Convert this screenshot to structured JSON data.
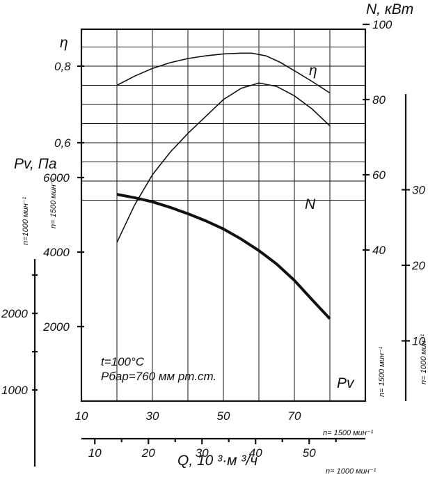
{
  "chart_data": {
    "type": "line",
    "x_unit_label": "Q, 10 ³·м ³/ч",
    "x_axis_1500": {
      "ticks": [
        10,
        30,
        50,
        70
      ],
      "speed_label": "n= 1500 мин⁻¹",
      "range": [
        10,
        90
      ]
    },
    "x_axis_1000": {
      "ticks": [
        10,
        20,
        30,
        40,
        50
      ],
      "speed_label": "n= 1000 мин⁻¹"
    },
    "eta_axis": {
      "label": "η",
      "ticks": [
        {
          "v": 0.8,
          "t": "0,8"
        },
        {
          "v": 0.6,
          "t": "0,6"
        }
      ]
    },
    "pv_axis_1500": {
      "label": "Pv,  Па",
      "ticks": [
        6000,
        4000,
        2000
      ],
      "speed_label": "n= 1500 мин⁻¹"
    },
    "pv_axis_1000": {
      "ticks": [
        2000,
        1000
      ],
      "speed_label": "n=1000 мин⁻¹"
    },
    "n_axis_1500": {
      "label": "N,  кВт",
      "ticks": [
        100,
        80,
        60,
        40
      ],
      "speed_label": "n= 1500 мин⁻¹"
    },
    "n_axis_1000": {
      "ticks": [
        30,
        20,
        10
      ],
      "speed_label": "n= 1000 мин⁻¹"
    },
    "annotations": [
      "t=100°C",
      "Pбар=760 мм рт.ст."
    ],
    "series": [
      {
        "name": "η",
        "x": [
          20,
          25,
          30,
          35,
          40,
          45,
          50,
          55,
          58,
          62,
          66,
          70,
          75,
          80
        ],
        "y": [
          0.75,
          0.774,
          0.794,
          0.809,
          0.82,
          0.827,
          0.832,
          0.834,
          0.834,
          0.827,
          0.81,
          0.788,
          0.76,
          0.73
        ]
      },
      {
        "name": "N",
        "x": [
          20,
          25,
          30,
          35,
          40,
          45,
          50,
          55,
          60,
          65,
          70,
          75,
          80
        ],
        "y": [
          42,
          52,
          60,
          66,
          71,
          75.5,
          80,
          83,
          84.4,
          83.5,
          81,
          77.5,
          73
        ]
      },
      {
        "name": "Pv",
        "x": [
          20,
          25,
          30,
          35,
          40,
          45,
          50,
          55,
          60,
          65,
          70,
          75,
          80
        ],
        "y": [
          5550,
          5460,
          5350,
          5200,
          5030,
          4840,
          4620,
          4350,
          4040,
          3680,
          3240,
          2720,
          2210
        ]
      }
    ]
  }
}
